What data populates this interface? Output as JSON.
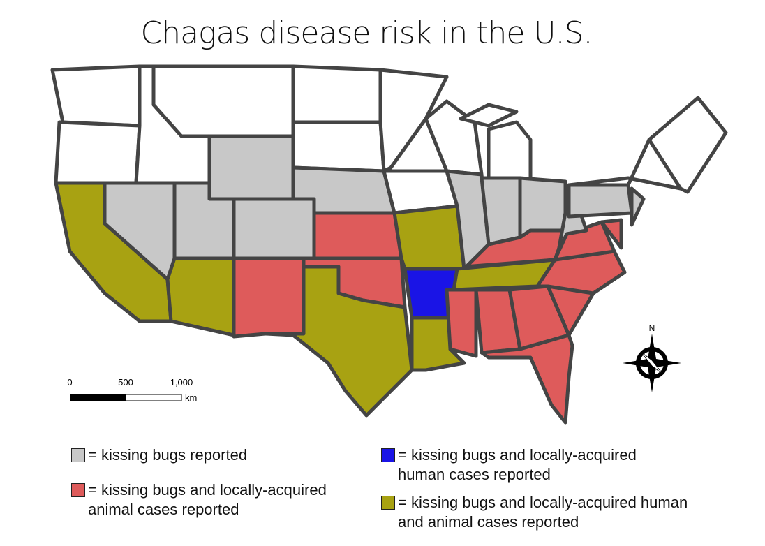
{
  "title": "Chagas disease risk in the U.S.",
  "scale_bar": {
    "labels": [
      "0",
      "500",
      "1,000"
    ],
    "unit": "km"
  },
  "compass": "N",
  "legend": [
    {
      "color": "#c8c8c8",
      "label": "= kissing bugs reported"
    },
    {
      "color": "#de5b5b",
      "label": "= kissing bugs and locally-acquired animal cases reported"
    },
    {
      "color": "#1a14e6",
      "label": "= kissing bugs and locally-acquired human cases reported"
    },
    {
      "color": "#a8a212",
      "label": "= kissing bugs and locally-acquired human and animal cases reported"
    }
  ]
}
